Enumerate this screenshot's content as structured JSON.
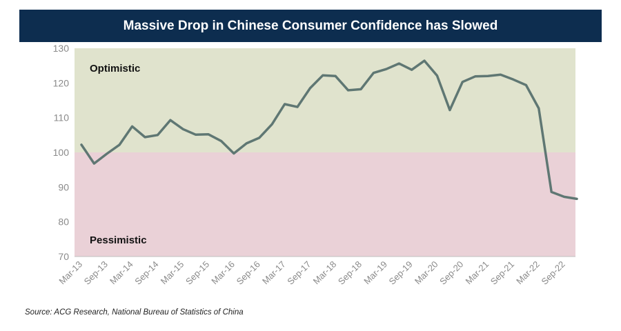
{
  "chart_data": {
    "type": "line",
    "title": "Massive Drop in Chinese Consumer Confidence has Slowed",
    "xlabel": "",
    "ylabel": "",
    "ylim": [
      70,
      130
    ],
    "yticks": [
      70,
      80,
      90,
      100,
      110,
      120,
      130
    ],
    "grid": false,
    "regions": [
      {
        "name": "optimistic",
        "label": "Optimistic",
        "from": 100,
        "to": 130,
        "color": "#e0e3cd"
      },
      {
        "name": "pessimistic",
        "label": "Pessimistic",
        "from": 70,
        "to": 100,
        "color": "#ead1d7"
      }
    ],
    "xtick_labels": [
      "Mar-13",
      "Sep-13",
      "Mar-14",
      "Sep-14",
      "Mar-15",
      "Sep-15",
      "Mar-16",
      "Sep-16",
      "Mar-17",
      "Sep-17",
      "Mar-18",
      "Sep-18",
      "Mar-19",
      "Sep-19",
      "Mar-20",
      "Sep-20",
      "Mar-21",
      "Sep-21",
      "Mar-22",
      "Sep-22"
    ],
    "series": [
      {
        "name": "Consumer Confidence",
        "color": "#5f7773",
        "values": [
          102.2,
          96.8,
          99.6,
          102.2,
          107.5,
          104.4,
          105.0,
          109.3,
          106.7,
          105.1,
          105.2,
          103.3,
          99.7,
          102.6,
          104.2,
          108.1,
          113.9,
          113.1,
          118.5,
          122.2,
          122.0,
          117.9,
          118.2,
          122.9,
          124.0,
          125.6,
          123.8,
          126.4,
          122.1,
          112.2,
          120.3,
          121.9,
          122.0,
          122.4,
          121.0,
          119.4,
          112.7,
          88.6,
          87.2,
          86.6
        ]
      }
    ]
  },
  "footer": {
    "source": "Source: ACG Research, National Bureau of Statistics of China"
  }
}
